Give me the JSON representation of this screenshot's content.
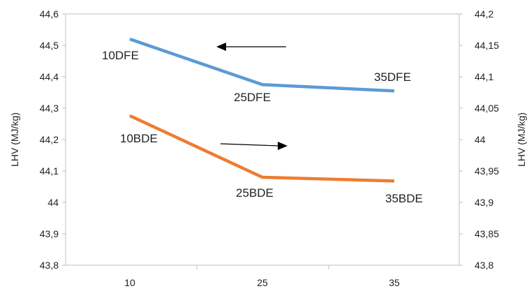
{
  "chart_data": {
    "type": "line",
    "categories": [
      "10",
      "25",
      "35"
    ],
    "y_left": {
      "label": "LHV  (MJ/kg)",
      "ylim": [
        43.8,
        44.6
      ],
      "ticks": [
        "43,8",
        "43,9",
        "44",
        "44,1",
        "44,2",
        "44,3",
        "44,4",
        "44,5",
        "44,6"
      ]
    },
    "y_right": {
      "label": "LHV (MJ/kg)",
      "ylim": [
        43.8,
        44.2
      ],
      "ticks": [
        "43,8",
        "43,85",
        "43,9",
        "43,95",
        "44",
        "44,05",
        "44,1",
        "44,15",
        "44,2"
      ]
    },
    "series": [
      {
        "axis": "left",
        "color": "#5b9bd5",
        "values": [
          44.52,
          44.375,
          44.355
        ],
        "point_labels": [
          "10DFE",
          "25DFE",
          "35DFE"
        ],
        "arrow": "left"
      },
      {
        "axis": "right",
        "color": "#ed7d31",
        "values": [
          44.038,
          43.94,
          43.934
        ],
        "point_labels": [
          "10BDE",
          "25BDE",
          "35BDE"
        ],
        "arrow": "right"
      }
    ],
    "grid": false,
    "legend": "none"
  }
}
